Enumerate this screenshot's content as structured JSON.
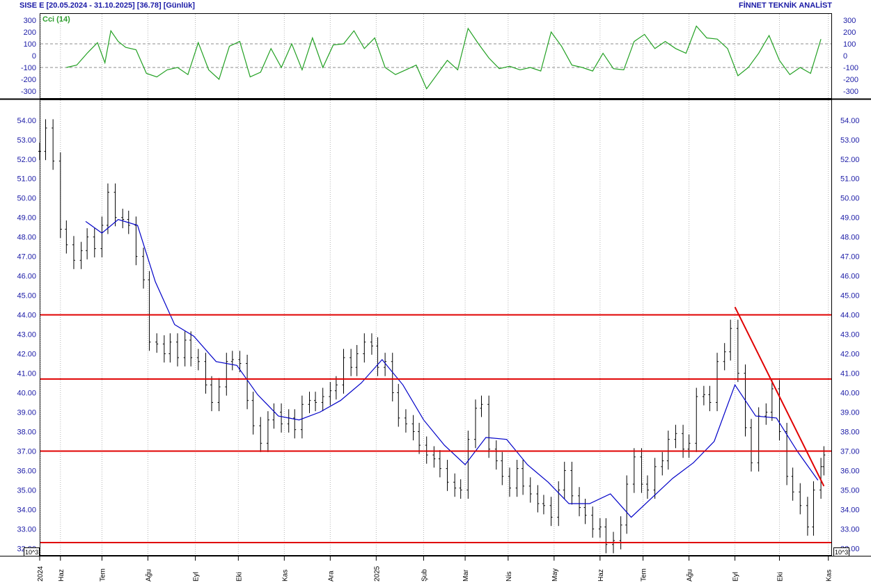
{
  "header": {
    "left": "SISE  E  [20.05.2024 - 31.10.2025]  [36.78]  [Günlük]",
    "right": "FİNNET TEKNİK ANALİST"
  },
  "colors": {
    "cci_line": "#22a022",
    "ma_line": "#0000c8",
    "price_bars": "#000000",
    "levels": "#e00000",
    "trendline": "#e00000",
    "grid": "#b4b4b4",
    "tick_text": "#1a1aa6"
  },
  "chart_data": [
    {
      "type": "line",
      "title": "Cci (14)",
      "y_ticks": [
        "300",
        "200",
        "100",
        "0",
        "-100",
        "-200",
        "-300"
      ],
      "ylim": [
        -330,
        330
      ],
      "reference_lines": [
        100,
        -100
      ],
      "grid": "vertical dotted",
      "series": [
        {
          "name": "Cci (14)",
          "x": [
            "2024-06-07",
            "2024-06-14",
            "2024-06-21",
            "2024-06-28",
            "2024-07-03",
            "2024-07-07",
            "2024-07-12",
            "2024-07-17",
            "2024-07-24",
            "2024-07-31",
            "2024-08-07",
            "2024-08-14",
            "2024-08-21",
            "2024-08-28",
            "2024-09-04",
            "2024-09-11",
            "2024-09-18",
            "2024-09-25",
            "2024-10-02",
            "2024-10-09",
            "2024-10-16",
            "2024-10-23",
            "2024-10-30",
            "2024-11-06",
            "2024-11-13",
            "2024-11-20",
            "2024-11-27",
            "2024-12-04",
            "2024-12-11",
            "2024-12-18",
            "2024-12-25",
            "2025-01-01",
            "2025-01-08",
            "2025-01-15",
            "2025-01-22",
            "2025-01-29",
            "2025-02-05",
            "2025-02-12",
            "2025-02-19",
            "2025-02-26",
            "2025-03-05",
            "2025-03-12",
            "2025-03-19",
            "2025-03-26",
            "2025-04-02",
            "2025-04-09",
            "2025-04-16",
            "2025-04-23",
            "2025-04-30",
            "2025-05-07",
            "2025-05-14",
            "2025-05-21",
            "2025-05-28",
            "2025-06-04",
            "2025-06-11",
            "2025-06-18",
            "2025-06-25",
            "2025-07-02",
            "2025-07-09",
            "2025-07-16",
            "2025-07-23",
            "2025-07-30",
            "2025-08-06",
            "2025-08-13",
            "2025-08-20",
            "2025-08-27",
            "2025-09-03",
            "2025-09-10",
            "2025-09-17",
            "2025-09-24",
            "2025-10-01",
            "2025-10-08",
            "2025-10-15",
            "2025-10-22",
            "2025-10-29"
          ],
          "values": [
            -100,
            -80,
            20,
            110,
            -60,
            210,
            120,
            70,
            50,
            -150,
            -180,
            -120,
            -100,
            -160,
            110,
            -120,
            -200,
            80,
            120,
            -180,
            -140,
            60,
            -100,
            100,
            -120,
            150,
            -100,
            90,
            100,
            210,
            60,
            150,
            -100,
            -160,
            -120,
            -80,
            -280,
            -160,
            -40,
            -120,
            230,
            100,
            -20,
            -110,
            -90,
            -120,
            -100,
            -130,
            200,
            80,
            -80,
            -100,
            -130,
            20,
            -110,
            -120,
            120,
            180,
            60,
            120,
            60,
            20,
            250,
            150,
            140,
            60,
            -170,
            -100,
            20,
            170,
            -40,
            -160,
            -100,
            -150,
            140
          ]
        }
      ]
    },
    {
      "type": "bar",
      "subtype": "ohlc",
      "y_ticks": [
        "54.00",
        "53.00",
        "52.00",
        "51.00",
        "50.00",
        "49.00",
        "48.00",
        "47.00",
        "46.00",
        "45.00",
        "44.00",
        "43.00",
        "42.00",
        "41.00",
        "40.00",
        "39.00",
        "38.00",
        "37.00",
        "36.00",
        "35.00",
        "34.00",
        "33.00",
        "32.00"
      ],
      "ylim": [
        31.6,
        55.2
      ],
      "x_ticks": [
        "2024",
        "Haz",
        "Tem",
        "Ağu",
        "Eyl",
        "Eki",
        "Kas",
        "Ara",
        "2025",
        "Şub",
        "Mar",
        "Nis",
        "May",
        "Haz",
        "Tem",
        "Ağu",
        "Eyl",
        "Eki",
        "Kas"
      ],
      "grid": "vertical dotted",
      "volume_scale_label": "10^3",
      "horizontal_levels": [
        44.0,
        40.7,
        37.0,
        32.3
      ],
      "trendline": {
        "from": {
          "date": "2025-09-01",
          "price": 44.4
        },
        "to": {
          "date": "2025-10-31",
          "price": 35.2
        }
      },
      "series": [
        {
          "name": "price",
          "x": [
            "2024-05-20",
            "2024-05-24",
            "2024-05-29",
            "2024-06-03",
            "2024-06-07",
            "2024-06-12",
            "2024-06-17",
            "2024-06-21",
            "2024-06-26",
            "2024-07-01",
            "2024-07-05",
            "2024-07-10",
            "2024-07-15",
            "2024-07-19",
            "2024-07-24",
            "2024-07-29",
            "2024-08-02",
            "2024-08-07",
            "2024-08-12",
            "2024-08-16",
            "2024-08-21",
            "2024-08-26",
            "2024-08-30",
            "2024-09-04",
            "2024-09-09",
            "2024-09-13",
            "2024-09-18",
            "2024-09-23",
            "2024-09-27",
            "2024-10-02",
            "2024-10-07",
            "2024-10-11",
            "2024-10-16",
            "2024-10-21",
            "2024-10-25",
            "2024-10-30",
            "2024-11-04",
            "2024-11-08",
            "2024-11-13",
            "2024-11-18",
            "2024-11-22",
            "2024-11-27",
            "2024-12-02",
            "2024-12-06",
            "2024-12-11",
            "2024-12-16",
            "2024-12-20",
            "2024-12-25",
            "2024-12-30",
            "2025-01-03",
            "2025-01-08",
            "2025-01-13",
            "2025-01-17",
            "2025-01-22",
            "2025-01-27",
            "2025-01-31",
            "2025-02-05",
            "2025-02-10",
            "2025-02-14",
            "2025-02-19",
            "2025-02-24",
            "2025-02-28",
            "2025-03-05",
            "2025-03-10",
            "2025-03-14",
            "2025-03-19",
            "2025-03-24",
            "2025-03-28",
            "2025-04-02",
            "2025-04-07",
            "2025-04-11",
            "2025-04-16",
            "2025-04-21",
            "2025-04-25",
            "2025-04-30",
            "2025-05-05",
            "2025-05-09",
            "2025-05-14",
            "2025-05-19",
            "2025-05-23",
            "2025-05-28",
            "2025-06-02",
            "2025-06-06",
            "2025-06-11",
            "2025-06-16",
            "2025-06-20",
            "2025-06-25",
            "2025-06-30",
            "2025-07-04",
            "2025-07-09",
            "2025-07-14",
            "2025-07-18",
            "2025-07-23",
            "2025-07-28",
            "2025-08-01",
            "2025-08-06",
            "2025-08-11",
            "2025-08-15",
            "2025-08-20",
            "2025-08-25",
            "2025-08-29",
            "2025-09-03",
            "2025-09-08",
            "2025-09-12",
            "2025-09-17",
            "2025-09-22",
            "2025-09-26",
            "2025-10-01",
            "2025-10-06",
            "2025-10-10",
            "2025-10-15",
            "2025-10-20",
            "2025-10-24",
            "2025-10-29",
            "2025-10-31"
          ],
          "close": [
            52.4,
            53.6,
            51.9,
            48.4,
            47.6,
            46.8,
            47.3,
            48.0,
            47.4,
            48.6,
            50.3,
            49.0,
            48.9,
            48.6,
            47.0,
            45.8,
            42.6,
            42.5,
            42.0,
            42.6,
            41.8,
            42.7,
            41.8,
            41.6,
            40.4,
            39.5,
            40.3,
            41.6,
            41.7,
            41.5,
            39.6,
            38.3,
            37.4,
            38.6,
            39.0,
            38.4,
            38.7,
            38.1,
            39.4,
            39.6,
            39.5,
            39.8,
            40.1,
            40.4,
            41.8,
            41.3,
            42.0,
            42.6,
            42.4,
            41.3,
            41.6,
            40.0,
            38.7,
            38.4,
            38.0,
            37.3,
            36.8,
            36.6,
            36.1,
            35.4,
            35.1,
            35.0,
            37.6,
            39.2,
            39.4,
            37.1,
            36.5,
            35.7,
            35.1,
            36.1,
            35.2,
            34.8,
            34.3,
            34.2,
            33.6,
            35.0,
            36.0,
            34.7,
            34.1,
            33.7,
            33.0,
            33.1,
            32.2,
            32.4,
            33.2,
            35.3,
            36.7,
            35.3,
            35.0,
            36.2,
            36.5,
            37.6,
            37.9,
            37.1,
            37.4,
            39.8,
            39.9,
            39.5,
            41.6,
            42.1,
            43.3,
            41.0,
            38.2,
            36.4,
            38.8,
            39.0,
            40.2,
            38.0,
            35.7,
            34.9,
            34.2,
            33.1,
            35.0,
            36.2,
            36.8
          ]
        },
        {
          "name": "moving average",
          "x": [
            "2024-06-20",
            "2024-07-01",
            "2024-07-12",
            "2024-07-25",
            "2024-08-06",
            "2024-08-19",
            "2024-09-01",
            "2024-09-16",
            "2024-09-30",
            "2024-10-14",
            "2024-10-28",
            "2024-11-11",
            "2024-11-25",
            "2024-12-09",
            "2024-12-23",
            "2025-01-06",
            "2025-01-20",
            "2025-02-03",
            "2025-02-17",
            "2025-03-03",
            "2025-03-17",
            "2025-03-31",
            "2025-04-14",
            "2025-04-28",
            "2025-05-12",
            "2025-05-26",
            "2025-06-09",
            "2025-06-23",
            "2025-07-07",
            "2025-07-21",
            "2025-08-04",
            "2025-08-18",
            "2025-09-01",
            "2025-09-15",
            "2025-09-29",
            "2025-10-13",
            "2025-10-27"
          ],
          "values": [
            48.8,
            48.2,
            48.9,
            48.6,
            45.7,
            43.5,
            42.9,
            41.6,
            41.4,
            39.9,
            38.8,
            38.6,
            39.0,
            39.6,
            40.5,
            41.7,
            40.4,
            38.6,
            37.3,
            36.3,
            37.7,
            37.6,
            36.3,
            35.4,
            34.3,
            34.3,
            34.8,
            33.6,
            34.6,
            35.6,
            36.4,
            37.5,
            40.4,
            38.8,
            38.7,
            37.0,
            35.5
          ]
        }
      ]
    }
  ]
}
